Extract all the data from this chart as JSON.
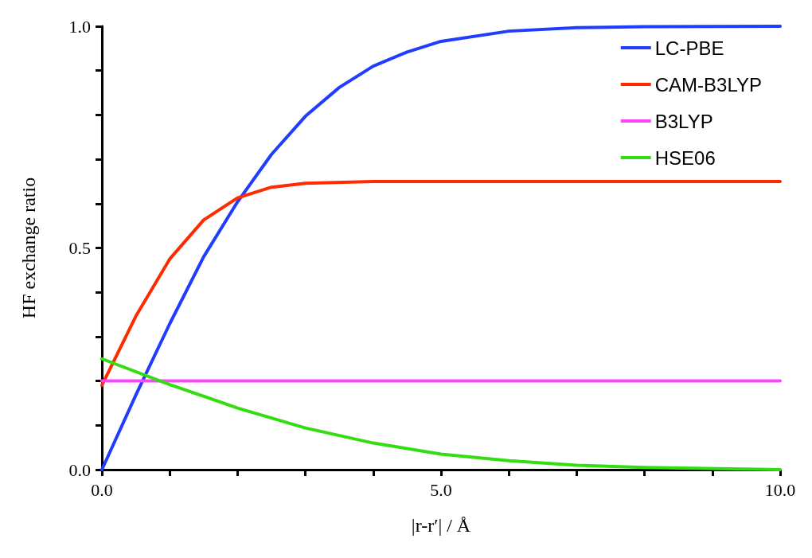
{
  "chart_data": {
    "type": "line",
    "xlabel": "|r-r′| / Å",
    "ylabel": "HF exchange ratio",
    "xlim": [
      0,
      10
    ],
    "xticks": [
      {
        "value": 0,
        "label": "0.0"
      },
      {
        "value": 1,
        "label": null
      },
      {
        "value": 2,
        "label": null
      },
      {
        "value": 3,
        "label": null
      },
      {
        "value": 4,
        "label": null
      },
      {
        "value": 5,
        "label": "5.0"
      },
      {
        "value": 6,
        "label": null
      },
      {
        "value": 7,
        "label": null
      },
      {
        "value": 8,
        "label": null
      },
      {
        "value": 9,
        "label": null
      },
      {
        "value": 10,
        "label": "10.0"
      }
    ],
    "ylim": [
      0,
      1
    ],
    "yticks": [
      {
        "value": 0,
        "label": "0.0"
      },
      {
        "value": 0.1,
        "label": null
      },
      {
        "value": 0.2,
        "label": null
      },
      {
        "value": 0.3,
        "label": null
      },
      {
        "value": 0.4,
        "label": null
      },
      {
        "value": 0.5,
        "label": "0.5"
      },
      {
        "value": 0.6,
        "label": null
      },
      {
        "value": 0.7,
        "label": null
      },
      {
        "value": 0.8,
        "label": null
      },
      {
        "value": 0.9,
        "label": null
      },
      {
        "value": 1,
        "label": "1.0"
      }
    ],
    "grid": false,
    "legend": "top right",
    "marker": "none",
    "line_style": "solid",
    "series": [
      {
        "name": "LC-PBE",
        "color": "#1f3cff",
        "x": [
          0,
          0.5,
          1,
          1.5,
          2,
          2.5,
          3,
          3.5,
          4,
          4.5,
          5,
          6,
          7,
          8,
          10
        ],
        "values": [
          0,
          0.168,
          0.329,
          0.48,
          0.604,
          0.711,
          0.797,
          0.862,
          0.91,
          0.942,
          0.966,
          0.989,
          0.997,
          0.999,
          1.0
        ]
      },
      {
        "name": "CAM-B3LYP",
        "color": "#ff2a00",
        "x": [
          0,
          0.5,
          1,
          1.5,
          2,
          2.5,
          3,
          4,
          10
        ],
        "values": [
          0.19,
          0.346,
          0.475,
          0.563,
          0.613,
          0.637,
          0.646,
          0.65,
          0.65
        ]
      },
      {
        "name": "B3LYP",
        "color": "#ff44ff",
        "x": [
          0,
          10
        ],
        "values": [
          0.2,
          0.2
        ]
      },
      {
        "name": "HSE06",
        "color": "#33dd11",
        "x": [
          0,
          1,
          2,
          3,
          4,
          5,
          6,
          7,
          8,
          10
        ],
        "values": [
          0.25,
          0.192,
          0.139,
          0.094,
          0.06,
          0.035,
          0.02,
          0.01,
          0.005,
          0.0
        ]
      }
    ]
  }
}
